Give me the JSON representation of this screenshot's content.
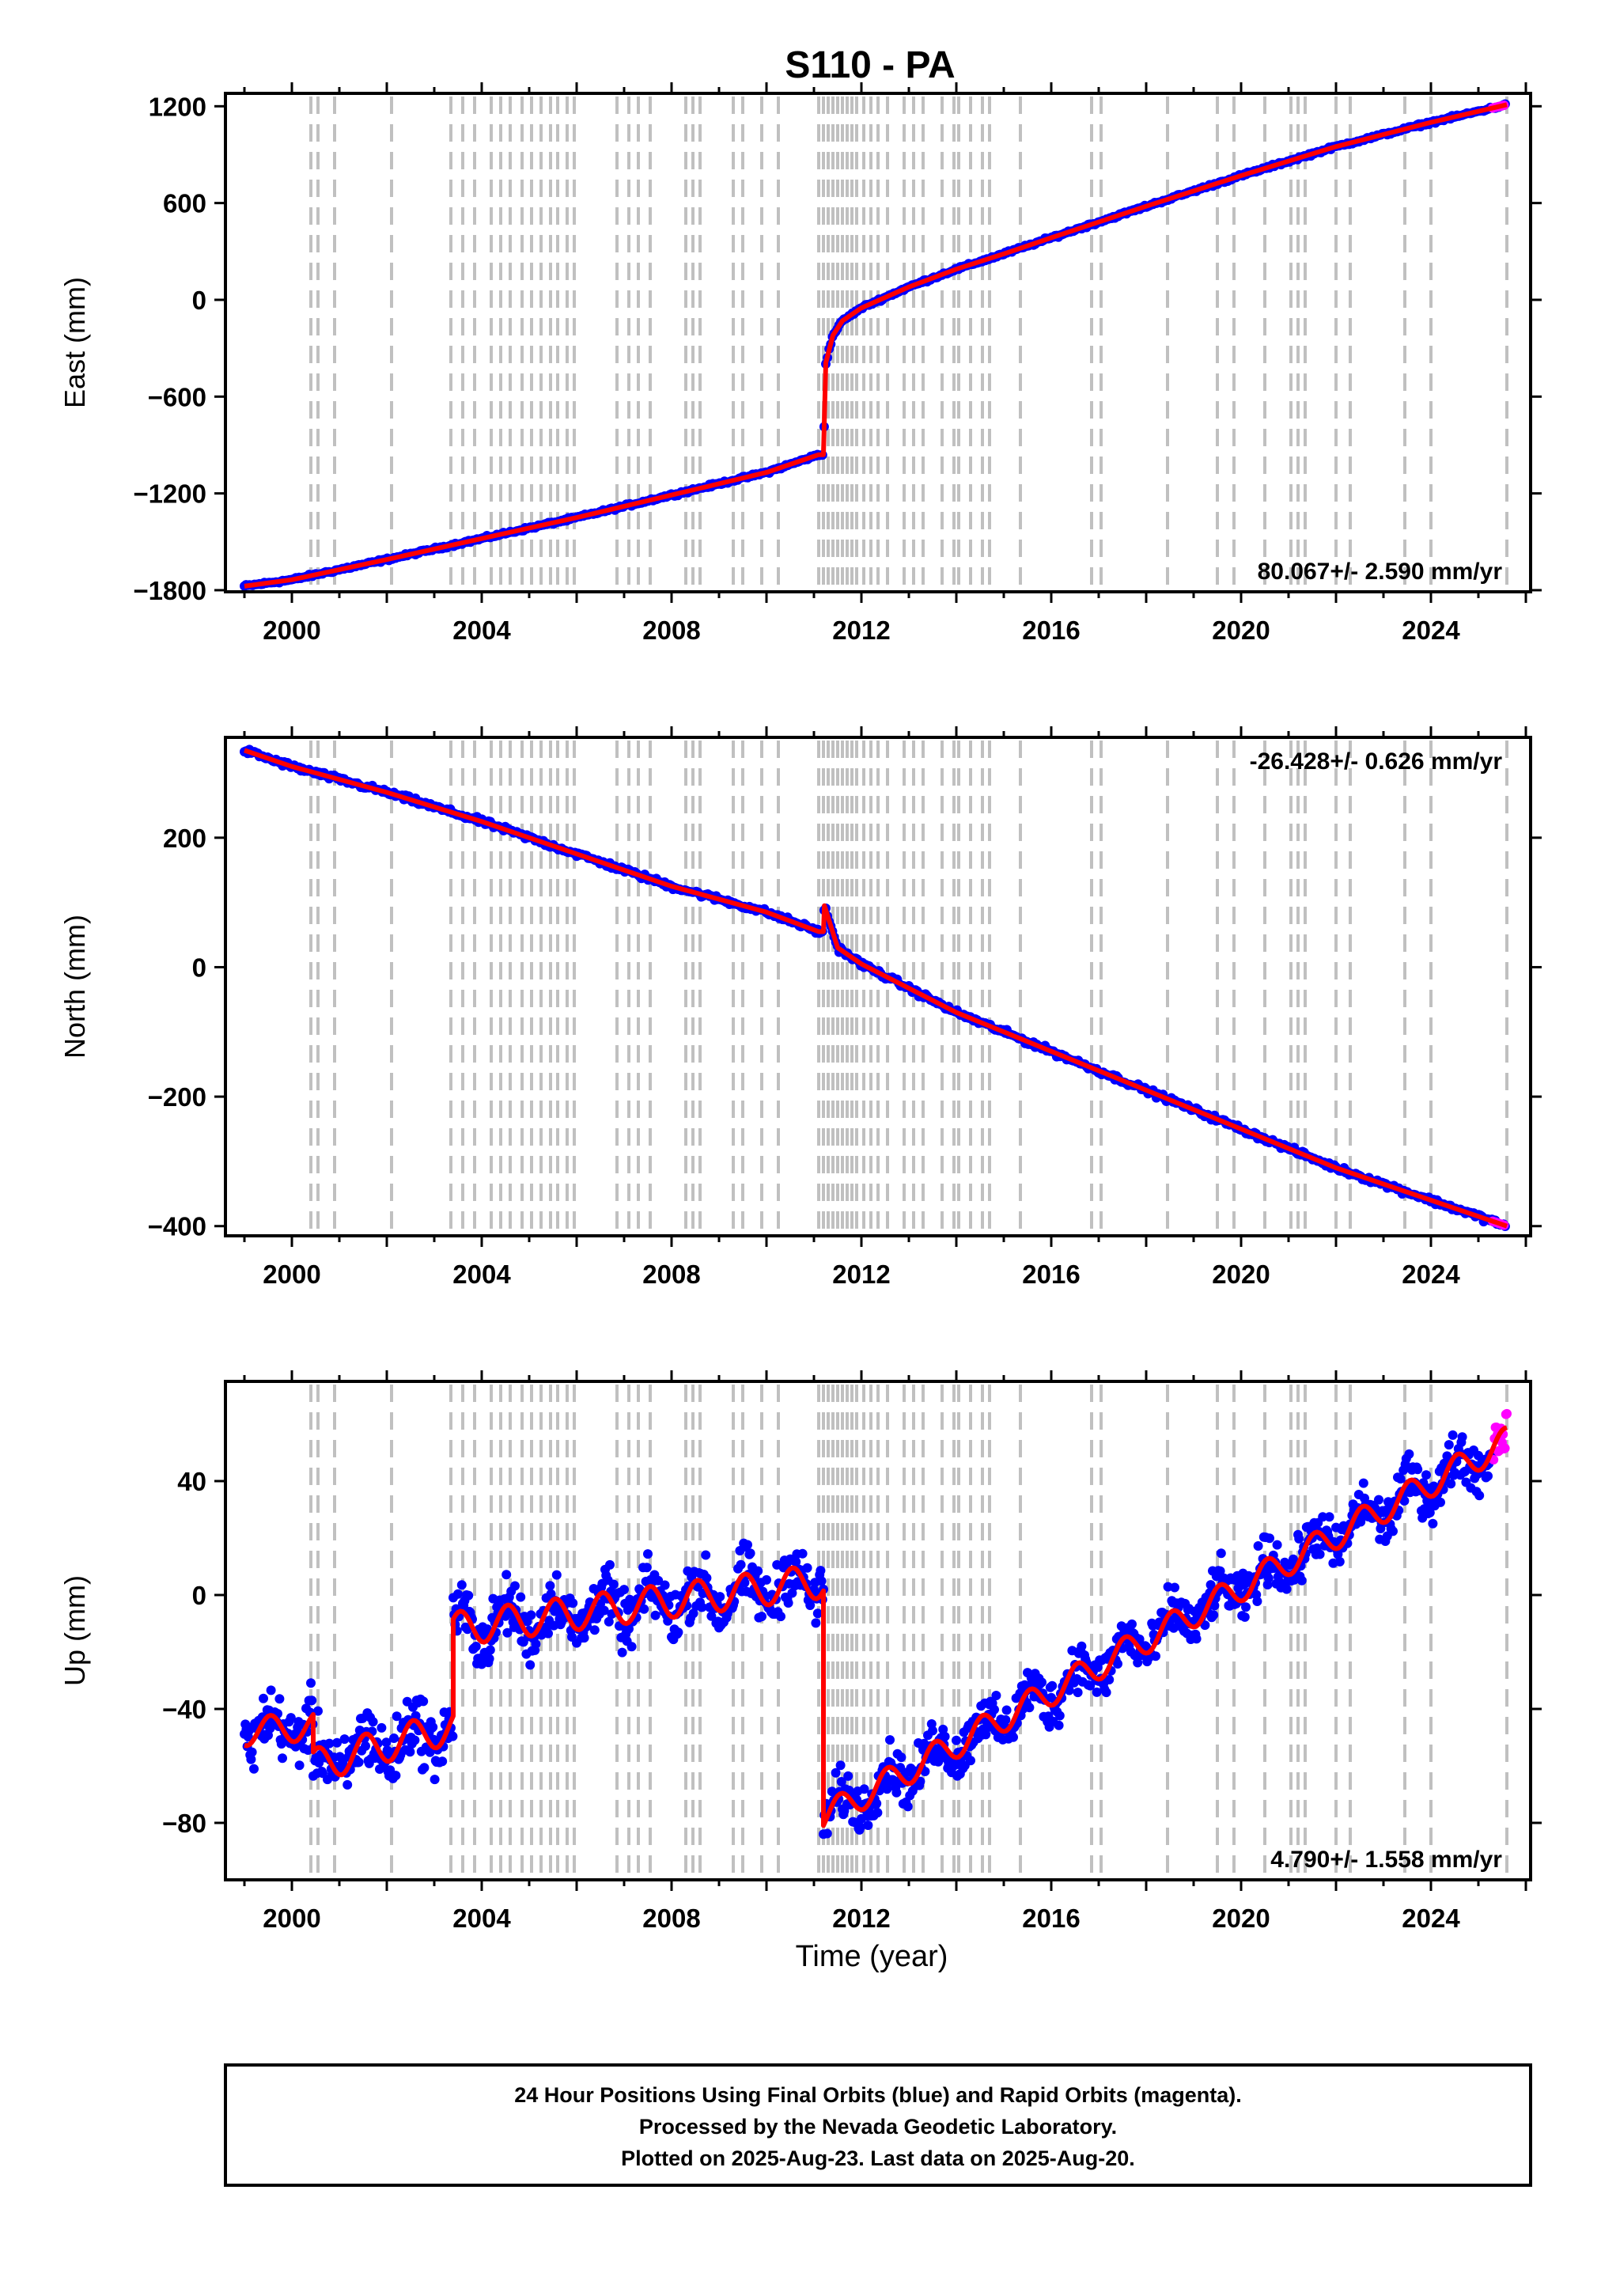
{
  "title": "S110 - PA",
  "colors": {
    "final_orbits": "#0000ff",
    "rapid_orbits": "#ff00ff",
    "model": "#ff0000",
    "step_lines": "#c0c0c0"
  },
  "chart_data": [
    {
      "type": "scatter",
      "component": "east",
      "ylabel": "East (mm)",
      "xlabel": "",
      "xlim": [
        1998.6,
        2026.1
      ],
      "ylim": [
        -1810,
        1280
      ],
      "yticks": [
        -1800,
        -1200,
        -600,
        0,
        600,
        1200
      ],
      "xticks": [
        2000,
        2004,
        2008,
        2012,
        2016,
        2020,
        2024
      ],
      "rate_label": "80.067+/- 2.590 mm/yr",
      "rate_position": "bottom-right",
      "series": [
        {
          "name": "model",
          "x": [
            1999.0,
            2000.0,
            2002.0,
            2004.0,
            2006.0,
            2008.0,
            2010.0,
            2011.1,
            2011.2,
            2011.25,
            2011.4,
            2011.6,
            2012.0,
            2013.0,
            2014.0,
            2015.0,
            2016.0,
            2018.0,
            2020.0,
            2022.0,
            2024.0,
            2025.6
          ],
          "y": [
            -1775,
            -1735,
            -1610,
            -1480,
            -1350,
            -1210,
            -1070,
            -960,
            -960,
            -390,
            -220,
            -130,
            -50,
            80,
            190,
            285,
            385,
            580,
            770,
            950,
            1100,
            1210
          ]
        }
      ]
    },
    {
      "type": "scatter",
      "component": "north",
      "ylabel": "North (mm)",
      "xlabel": "",
      "xlim": [
        1998.6,
        2026.1
      ],
      "ylim": [
        -415,
        355
      ],
      "yticks": [
        -400,
        -200,
        0,
        200
      ],
      "xticks": [
        2000,
        2004,
        2008,
        2012,
        2016,
        2020,
        2024
      ],
      "rate_label": "-26.428+/- 0.626 mm/yr",
      "rate_position": "top-right",
      "series": [
        {
          "name": "model",
          "x": [
            1999.0,
            2000.0,
            2002.0,
            2004.0,
            2006.0,
            2008.0,
            2010.0,
            2011.1,
            2011.2,
            2011.22,
            2011.5,
            2012.0,
            2014.0,
            2016.0,
            2018.0,
            2020.0,
            2022.0,
            2024.0,
            2025.6
          ],
          "y": [
            335,
            310,
            270,
            225,
            175,
            125,
            85,
            55,
            55,
            95,
            30,
            5,
            -70,
            -130,
            -190,
            -250,
            -310,
            -360,
            -400
          ]
        }
      ]
    },
    {
      "type": "scatter",
      "component": "up",
      "ylabel": "Up (mm)",
      "xlabel": "Time (year)",
      "xlim": [
        1998.6,
        2026.1
      ],
      "ylim": [
        -100,
        75
      ],
      "yticks": [
        -80,
        -40,
        0,
        40
      ],
      "xticks": [
        2000,
        2004,
        2008,
        2012,
        2016,
        2020,
        2024
      ],
      "rate_label": "4.790+/- 1.558 mm/yr",
      "rate_position": "bottom-right",
      "segments": [
        {
          "x_start": 1999.0,
          "x_end": 2000.45,
          "mean_start": -48,
          "mean_end": -46,
          "amplitude": 5,
          "scatter": 7
        },
        {
          "x_start": 2000.45,
          "x_end": 2003.4,
          "mean_start": -60,
          "mean_end": -46,
          "amplitude": 6,
          "scatter": 8
        },
        {
          "x_start": 2003.4,
          "x_end": 2011.2,
          "mean_start": -12,
          "mean_end": 5,
          "amplitude": 6,
          "scatter": 7
        },
        {
          "x_start": 2011.2,
          "x_end": 2025.6,
          "mean_start": -78,
          "mean_end": 54,
          "amplitude": 5,
          "scatter": 6
        }
      ]
    }
  ],
  "step_epochs": [
    2000.4,
    2000.55,
    2000.9,
    2002.1,
    2003.35,
    2003.6,
    2003.85,
    2004.2,
    2004.4,
    2004.6,
    2004.85,
    2005.05,
    2005.25,
    2005.45,
    2005.6,
    2005.8,
    2005.95,
    2006.85,
    2007.1,
    2007.3,
    2007.55,
    2008.3,
    2008.45,
    2008.6,
    2009.3,
    2009.5,
    2009.9,
    2010.25,
    2011.1,
    2011.2,
    2011.3,
    2011.4,
    2011.5,
    2011.6,
    2011.7,
    2011.8,
    2011.9,
    2012.05,
    2012.2,
    2012.35,
    2012.55,
    2012.9,
    2013.1,
    2013.3,
    2013.7,
    2013.95,
    2014.05,
    2014.3,
    2014.55,
    2014.7,
    2015.35,
    2016.85,
    2017.05,
    2018.45,
    2019.5,
    2019.85,
    2020.5,
    2021.05,
    2021.2,
    2021.35,
    2022.0,
    2022.3,
    2023.45,
    2024.0,
    2025.6
  ],
  "footer": {
    "line1": "24 Hour Positions Using Final Orbits (blue) and Rapid Orbits (magenta).",
    "line2": "Processed by the Nevada Geodetic Laboratory.",
    "line3": "Plotted on 2025-Aug-23. Last data on 2025-Aug-20."
  }
}
